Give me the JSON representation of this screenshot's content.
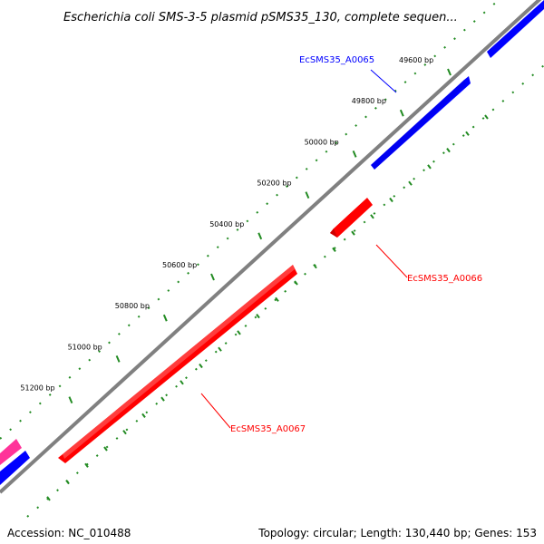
{
  "title": "Escherichia coli SMS-3-5 plasmid pSMS35_130, complete sequen...",
  "footer": {
    "accession": "Accession: NC_010488",
    "summary": "Topology: circular; Length: 130,440 bp; Genes: 153"
  },
  "ticks": [
    "49600 bp",
    "49800 bp",
    "50000 bp",
    "50200 bp",
    "50400 bp",
    "50600 bp",
    "50800 bp",
    "51000 bp",
    "51200 bp"
  ],
  "genes": [
    {
      "id": "EcSMS35_A0065",
      "strand": "forward",
      "color": "#0000ff"
    },
    {
      "id": "EcSMS35_A0066",
      "strand": "reverse",
      "color": "#ff0000"
    },
    {
      "id": "EcSMS35_A0067",
      "strand": "reverse",
      "color": "#ff0000"
    }
  ],
  "colors": {
    "backbone": "#808080",
    "tick": "#228b22",
    "forward_gene": "#0000ff",
    "reverse_gene": "#ff0000",
    "other_gene": "#ff3399"
  }
}
